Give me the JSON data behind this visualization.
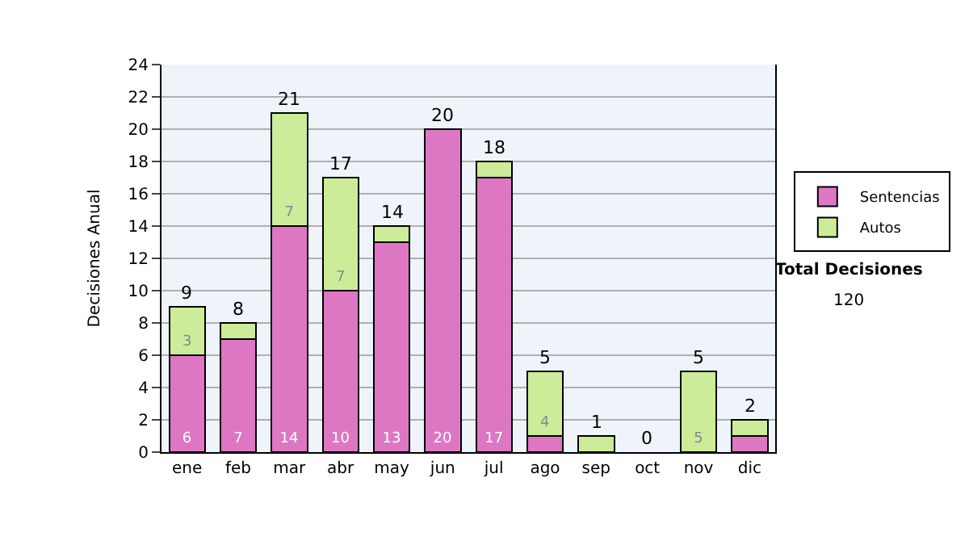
{
  "chart_data": {
    "type": "bar",
    "stacked": true,
    "ylabel": "Decisiones Anual",
    "categories": [
      "ene",
      "feb",
      "mar",
      "abr",
      "may",
      "jun",
      "jul",
      "ago",
      "sep",
      "oct",
      "nov",
      "dic"
    ],
    "series": [
      {
        "name": "Sentencias",
        "color": "#dd77c4",
        "values": [
          6,
          7,
          14,
          10,
          13,
          20,
          17,
          1,
          0,
          0,
          0,
          1
        ],
        "value_labels": [
          "6",
          "7",
          "14",
          "10",
          "13",
          "20",
          "17",
          null,
          null,
          null,
          null,
          null
        ]
      },
      {
        "name": "Autos",
        "color": "#ccec99",
        "values": [
          3,
          1,
          7,
          7,
          1,
          0,
          1,
          4,
          1,
          0,
          5,
          1
        ],
        "value_labels": [
          "3",
          null,
          "7",
          "7",
          null,
          null,
          null,
          "4",
          null,
          null,
          "5",
          null
        ]
      }
    ],
    "totals": [
      "9",
      "8",
      "21",
      "17",
      "14",
      "20",
      "18",
      "5",
      "1",
      "0",
      "5",
      "2"
    ],
    "ylim": [
      0,
      24
    ],
    "yticks": [
      0,
      2,
      4,
      6,
      8,
      10,
      12,
      14,
      16,
      18,
      20,
      22,
      24
    ],
    "grid": "y",
    "legend": "right",
    "annotations": [
      "Total Decisiones",
      "120"
    ]
  }
}
